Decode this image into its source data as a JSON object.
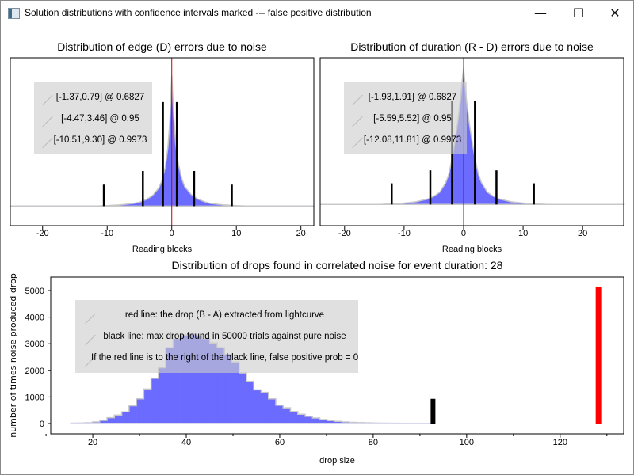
{
  "window": {
    "title": "Solution distributions with confidence intervals marked --- false positive distribution",
    "minimize": "—",
    "maximize": "☐",
    "close": "✕"
  },
  "colors": {
    "fill": "#6b6bff",
    "outline": "#c8c8c8",
    "baseline": "#0000ff",
    "marker": "#000000",
    "center": "#d00000",
    "red_line": "#ff0000"
  },
  "chart_data": [
    {
      "type": "area",
      "title": "Distribution of edge (D) errors due to noise",
      "xlabel": "Reading blocks",
      "ylabel": "",
      "xlim": [
        -25.0,
        22.0
      ],
      "ylim": [
        -0.15,
        1.14
      ],
      "xticks": [
        -20,
        -10,
        0,
        10,
        20
      ],
      "center_line": 0,
      "x": [
        -25,
        -12,
        -10,
        -8,
        -6,
        -5,
        -4,
        -3,
        -2.5,
        -2,
        -1.5,
        -1,
        -0.6,
        -0.3,
        0,
        0.3,
        0.6,
        1,
        1.5,
        2,
        2.5,
        3,
        4,
        5,
        6,
        8,
        10,
        12,
        22
      ],
      "y": [
        0,
        0,
        0.004,
        0.01,
        0.02,
        0.03,
        0.05,
        0.08,
        0.11,
        0.14,
        0.2,
        0.3,
        0.45,
        0.65,
        1.0,
        0.7,
        0.48,
        0.33,
        0.22,
        0.15,
        0.12,
        0.09,
        0.055,
        0.035,
        0.02,
        0.01,
        0.004,
        0,
        0
      ],
      "intervals": [
        {
          "label": "[-1.37,0.79] @ 0.6827",
          "lo": -1.37,
          "hi": 0.79,
          "height": 0.8
        },
        {
          "label": "[-4.47,3.46] @ 0.95",
          "lo": -4.47,
          "hi": 3.46,
          "height": 0.27
        },
        {
          "label": "[-10.51,9.30] @ 0.9973",
          "lo": -10.51,
          "hi": 9.3,
          "height": 0.165
        }
      ]
    },
    {
      "type": "area",
      "title": "Distribution of duration (R - D) errors due to noise",
      "xlabel": "Reading blocks",
      "ylabel": "",
      "xlim": [
        -24.1,
        26.9
      ],
      "ylim": [
        -0.155,
        1.075
      ],
      "xticks": [
        -20,
        -10,
        0,
        10,
        20
      ],
      "center_line": 0,
      "x": [
        -24,
        -14,
        -12,
        -10,
        -8,
        -6,
        -5,
        -4,
        -3,
        -2.5,
        -2,
        -1.5,
        -1,
        -0.5,
        -0.2,
        0,
        0.2,
        0.5,
        1,
        1.5,
        2,
        2.5,
        3,
        4,
        5,
        6,
        8,
        10,
        12,
        14,
        27
      ],
      "y": [
        0,
        0,
        0.005,
        0.01,
        0.02,
        0.04,
        0.06,
        0.09,
        0.16,
        0.22,
        0.32,
        0.45,
        0.6,
        0.78,
        0.92,
        1.0,
        0.9,
        0.76,
        0.58,
        0.44,
        0.32,
        0.22,
        0.16,
        0.09,
        0.06,
        0.04,
        0.02,
        0.01,
        0.005,
        0,
        0
      ],
      "intervals": [
        {
          "label": "[-1.93,1.91] @ 0.6827",
          "lo": -1.93,
          "hi": 1.91,
          "height": 0.76
        },
        {
          "label": "[-5.59,5.52] @ 0.95",
          "lo": -5.59,
          "hi": 5.52,
          "height": 0.25
        },
        {
          "label": "[-12.08,11.81] @ 0.9973",
          "lo": -12.08,
          "hi": 11.81,
          "height": 0.155
        }
      ]
    },
    {
      "type": "bar",
      "title": "Distribution of drops found in correlated noise for event duration: 28",
      "xlabel": "drop size",
      "ylabel": "number of times noise produced drop",
      "xlim": [
        11.0,
        133.6
      ],
      "ylim": [
        -387,
        5506
      ],
      "xticks": [
        20,
        40,
        60,
        80,
        100,
        120
      ],
      "yticks": [
        0,
        1000,
        2000,
        3000,
        4000,
        5000
      ],
      "bin_start": 15.2,
      "bin_width": 1.57,
      "values": [
        15,
        20,
        30,
        60,
        120,
        220,
        320,
        440,
        670,
        930,
        1300,
        1700,
        2100,
        2850,
        3200,
        3330,
        3380,
        3320,
        3200,
        3030,
        2850,
        2600,
        2310,
        1900,
        1590,
        1270,
        1170,
        930,
        690,
        590,
        450,
        350,
        270,
        210,
        150,
        110,
        80,
        60,
        45,
        35,
        25,
        20,
        15,
        12,
        10,
        8,
        6,
        5,
        4
      ],
      "black_line": {
        "x": 92.8,
        "value": 930
      },
      "red_line": {
        "x": 128.2,
        "value": 5150
      },
      "legend": [
        "red line: the drop (B - A) extracted from lightcurve",
        "black line: max drop found in 50000 trials against pure noise",
        "If the red line is to the right of the black line, false positive prob = 0"
      ]
    }
  ]
}
